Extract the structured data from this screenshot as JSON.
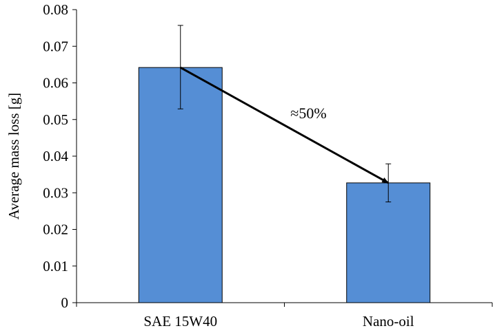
{
  "chart_data": {
    "type": "bar",
    "title": "",
    "xlabel": "",
    "ylabel": "Average mass loss [g]",
    "categories": [
      "SAE 15W40",
      "Nano-oil"
    ],
    "values": [
      0.0642,
      0.0327
    ],
    "error_low": [
      0.0529,
      0.0275
    ],
    "error_high": [
      0.0757,
      0.0379
    ],
    "ylim": [
      0,
      0.08
    ],
    "yticks": [
      0,
      0.01,
      0.02,
      0.03,
      0.04,
      0.05,
      0.06,
      0.07,
      0.08
    ],
    "ytick_labels": [
      "0",
      "0.01",
      "0.02",
      "0.03",
      "0.04",
      "0.05",
      "0.06",
      "0.07",
      "0.08"
    ],
    "bar_color": "#558ed5",
    "grid": false,
    "annotation": {
      "text": "≈50%",
      "arrow_from_category": "SAE 15W40",
      "arrow_from_value": 0.0642,
      "arrow_to_category": "Nano-oil",
      "arrow_to_value": 0.0327
    }
  }
}
